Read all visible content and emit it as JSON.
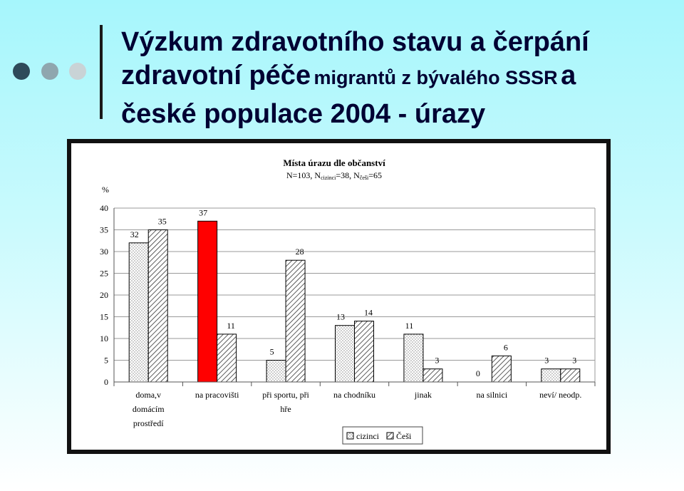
{
  "slide": {
    "title_line1": "Výzkum zdravotního stavu a čerpání",
    "title_line2a": "zdravotní péče",
    "title_line2b": "migrantů z bývalého SSSR",
    "title_line2c": "a",
    "title_line3": "české populace 2004 - úrazy"
  },
  "colors": {
    "dot1": "#2e4a5a",
    "dot2": "#8fa6ae",
    "dot3": "#c9d3d6",
    "highlight": "#ff0000"
  },
  "chart_data": {
    "type": "bar",
    "title": "Místa úrazu dle občanství",
    "subtitle_parts": [
      "N=103, N",
      "cizinci",
      "=38, N",
      "češi",
      "=65"
    ],
    "ylabel": "%",
    "ylim": [
      0,
      40
    ],
    "yticks": [
      "0",
      "5",
      "10",
      "15",
      "20",
      "25",
      "30",
      "35",
      "40"
    ],
    "grid": true,
    "legend_position": "bottom",
    "categories": [
      [
        "doma,v",
        "domácím",
        "prostředí"
      ],
      [
        "na pracovišti"
      ],
      [
        "při sportu, při",
        "hře"
      ],
      [
        "na chodníku"
      ],
      [
        "jinak"
      ],
      [
        "na silnici"
      ],
      [
        "neví/ neodp."
      ]
    ],
    "series": [
      {
        "name": "cizinci",
        "pattern": "dots",
        "values": [
          32,
          37,
          5,
          13,
          11,
          0,
          3
        ]
      },
      {
        "name": "Češi",
        "pattern": "hatch",
        "values": [
          35,
          11,
          28,
          14,
          3,
          6,
          3
        ]
      }
    ],
    "highlight": {
      "series": 0,
      "index": 1
    }
  }
}
